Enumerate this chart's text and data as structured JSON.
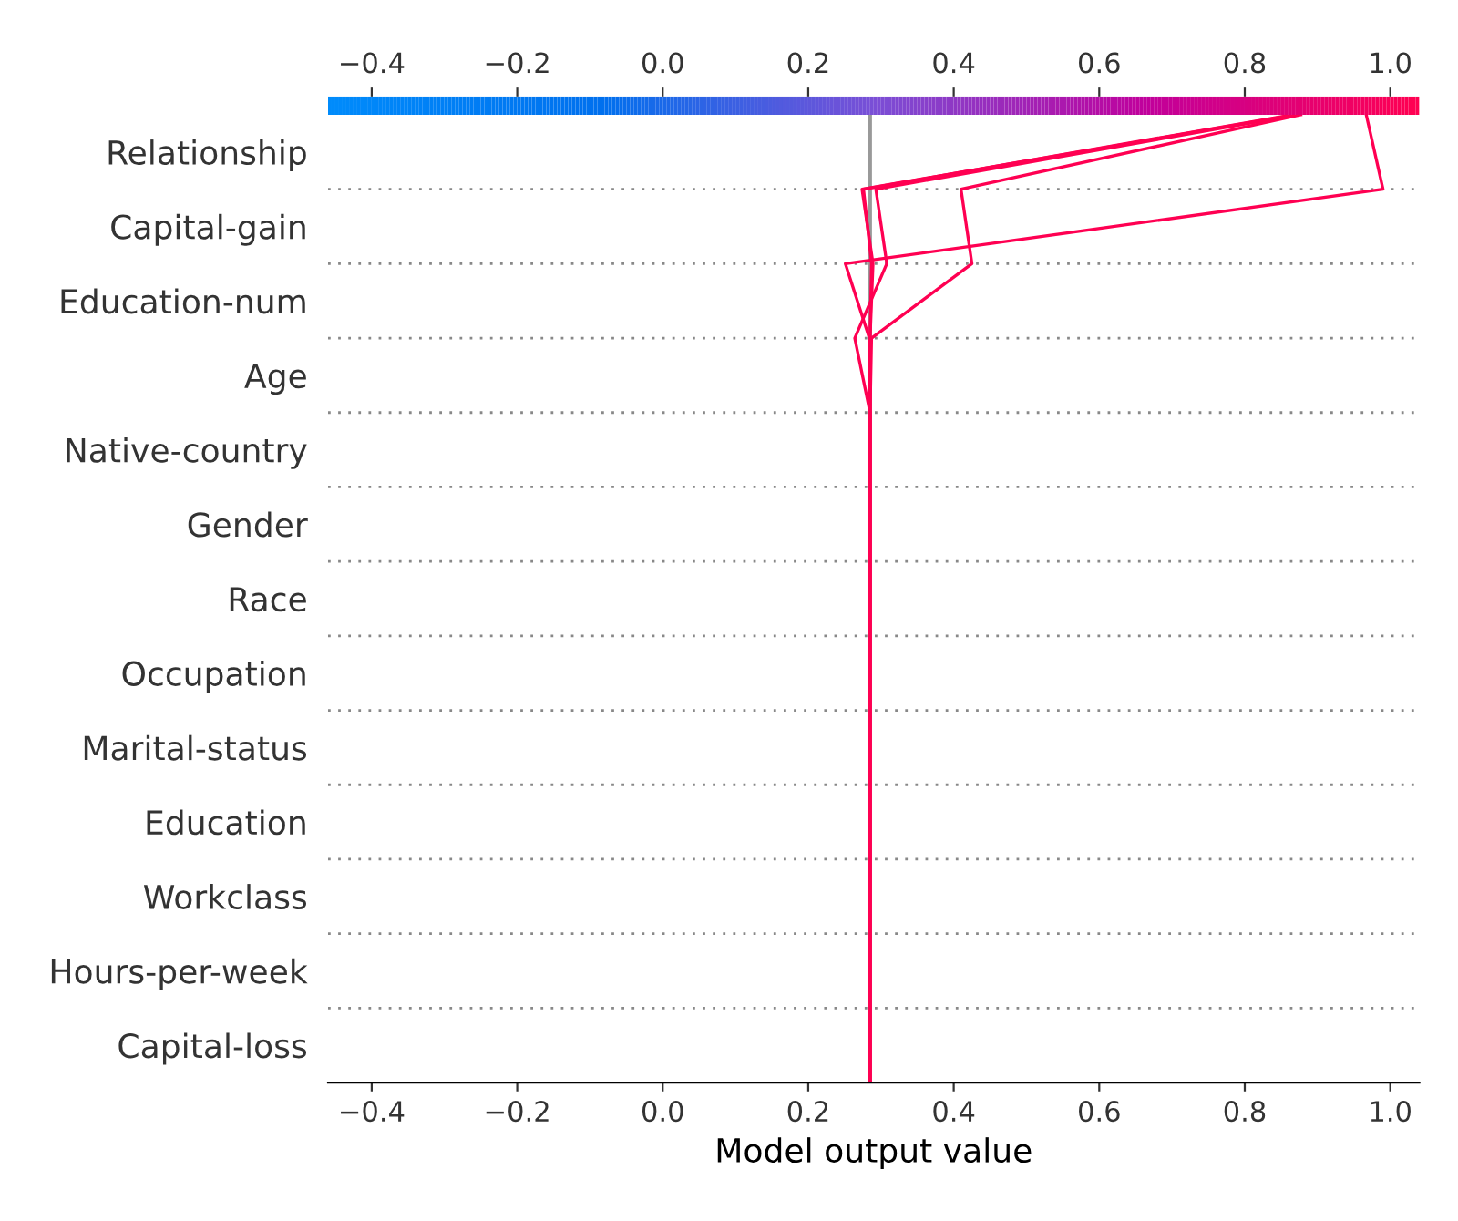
{
  "chart_data": {
    "type": "line",
    "orientation": "horizontal",
    "xlabel": "Model output value",
    "categories": [
      null,
      "Relationship",
      null,
      "Capital-gain",
      null,
      "Education-num",
      null,
      "Age",
      null,
      "Native-country",
      null,
      "Gender",
      null,
      "Race",
      null,
      "Occupation",
      null,
      "Marital-status",
      null,
      "Education",
      null,
      "Workclass",
      null,
      "Hours-per-week",
      null,
      "Capital-loss",
      null
    ],
    "series": [
      {
        "color": "#ff0052",
        "values": [
          0.967,
          null,
          0.99,
          null,
          0.251,
          null,
          0.284,
          null,
          0.285,
          null,
          0.285,
          null,
          0.285,
          null,
          0.285,
          null,
          0.285,
          null,
          0.285,
          null,
          0.285,
          null,
          0.285,
          null,
          0.285,
          null,
          0.285
        ]
      },
      {
        "color": "#ff0052",
        "values": [
          0.877,
          null,
          0.41,
          null,
          0.425,
          null,
          0.287,
          null,
          0.285,
          null,
          0.285,
          null,
          0.285,
          null,
          0.285,
          null,
          0.285,
          null,
          0.285,
          null,
          0.285,
          null,
          0.285,
          null,
          0.285,
          null,
          0.285
        ]
      },
      {
        "color": "#ff0052",
        "values": [
          0.873,
          null,
          0.293,
          null,
          0.308,
          null,
          0.264,
          null,
          0.285,
          null,
          0.285,
          null,
          0.285,
          null,
          0.285,
          null,
          0.285,
          null,
          0.285,
          null,
          0.285,
          null,
          0.285,
          null,
          0.285,
          null,
          0.285
        ]
      },
      {
        "color": "#ff0052",
        "values": [
          0.869,
          null,
          0.274,
          null,
          0.289,
          null,
          0.285,
          null,
          0.285,
          null,
          0.285,
          null,
          0.285,
          null,
          0.285,
          null,
          0.285,
          null,
          0.285,
          null,
          0.285,
          null,
          0.285,
          null,
          0.285,
          null,
          0.285
        ]
      },
      {
        "color": "#ff0052",
        "values": [
          0.865,
          null,
          0.276,
          null,
          0.287,
          null,
          0.285,
          null,
          0.285,
          null,
          0.285,
          null,
          0.285,
          null,
          0.285,
          null,
          0.285,
          null,
          0.285,
          null,
          0.285,
          null,
          0.285,
          null,
          0.285,
          null,
          0.285
        ]
      }
    ],
    "ref_lines": [
      {
        "axis": "x",
        "value": 0.285,
        "color": "#999999"
      }
    ],
    "xlim": [
      -0.46,
      1.04
    ],
    "xticks": [
      {
        "value": -0.4,
        "label": "−0.4"
      },
      {
        "value": -0.2,
        "label": "−0.2"
      },
      {
        "value": 0.0,
        "label": "0.0"
      },
      {
        "value": 0.2,
        "label": "0.2"
      },
      {
        "value": 0.4,
        "label": "0.4"
      },
      {
        "value": 0.6,
        "label": "0.6"
      },
      {
        "value": 0.8,
        "label": "0.8"
      },
      {
        "value": 1.0,
        "label": "1.0"
      }
    ],
    "clim": [
      -0.46,
      1.04
    ],
    "cticks": [
      {
        "value": -0.4,
        "label": "−0.4"
      },
      {
        "value": -0.2,
        "label": "−0.2"
      },
      {
        "value": 0.0,
        "label": "0.0"
      },
      {
        "value": 0.2,
        "label": "0.2"
      },
      {
        "value": 0.4,
        "label": "0.4"
      },
      {
        "value": 0.6,
        "label": "0.6"
      },
      {
        "value": 0.8,
        "label": "0.8"
      },
      {
        "value": 1.0,
        "label": "1.0"
      }
    ],
    "grid": "y",
    "line_style": "solid",
    "marker": "none"
  }
}
